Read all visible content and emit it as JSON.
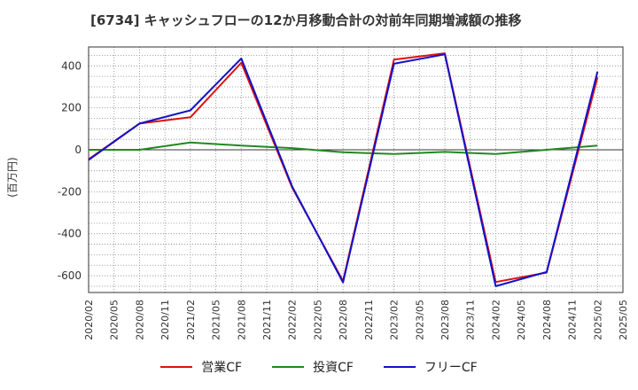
{
  "chart_data": {
    "type": "line",
    "title": "[6734]  キャッシュフローの12か月移動合計の対前年同期増減額の推移",
    "ylabel": "(百万円)",
    "xlabel": "",
    "ylim": [
      -680,
      490
    ],
    "yticks": [
      -600,
      -400,
      -200,
      0,
      200,
      400
    ],
    "grid": true,
    "x": [
      "2020/02",
      "2020/05",
      "2020/08",
      "2020/11",
      "2021/02",
      "2021/05",
      "2021/08",
      "2021/11",
      "2022/02",
      "2022/05",
      "2022/08",
      "2022/11",
      "2023/02",
      "2023/05",
      "2023/08",
      "2023/11",
      "2024/02",
      "2024/05",
      "2024/08",
      "2024/11",
      "2025/02",
      "2025/05"
    ],
    "series": [
      {
        "name": "営業CF",
        "color": "#dd1111",
        "values": [
          -45,
          null,
          125,
          null,
          155,
          null,
          415,
          null,
          -180,
          null,
          -625,
          null,
          430,
          null,
          460,
          null,
          -630,
          null,
          -585,
          null,
          345,
          null
        ]
      },
      {
        "name": "投資CF",
        "color": "#228822",
        "values": [
          0,
          null,
          0,
          null,
          35,
          null,
          20,
          null,
          8,
          null,
          -12,
          null,
          -20,
          null,
          -10,
          null,
          -20,
          null,
          0,
          null,
          20,
          null
        ]
      },
      {
        "name": "フリーCF",
        "color": "#1111cc",
        "values": [
          -48,
          null,
          125,
          null,
          188,
          null,
          435,
          null,
          -175,
          null,
          -632,
          null,
          410,
          null,
          455,
          null,
          -650,
          null,
          -582,
          null,
          372,
          null
        ]
      }
    ]
  }
}
